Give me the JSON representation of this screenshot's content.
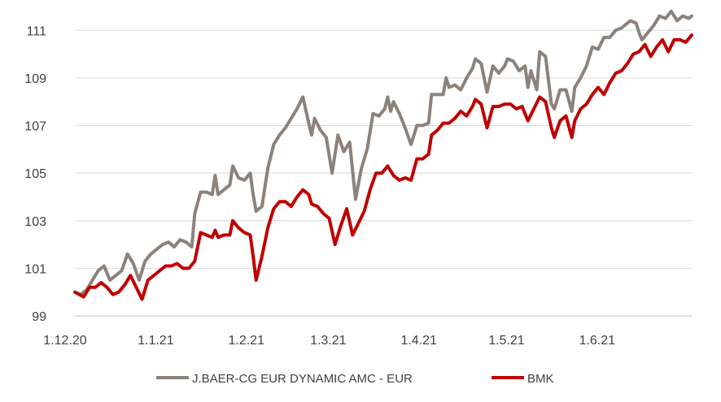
{
  "chart_data": {
    "type": "line",
    "title": "",
    "xlabel": "",
    "ylabel": "",
    "ylim": [
      99,
      112
    ],
    "y_ticks": [
      99,
      101,
      103,
      105,
      107,
      109,
      111
    ],
    "x_tick_labels": [
      "1.12.20",
      "1.1.21",
      "1.2.21",
      "1.3.21",
      "1.4.21",
      "1.5.21",
      "1.6.21"
    ],
    "x_tick_positions": [
      0,
      31,
      62,
      90,
      121,
      151,
      182
    ],
    "x_range": [
      0,
      211
    ],
    "grid": "horizontal",
    "legend_position": "bottom",
    "series": [
      {
        "name": "J.BAER-CG EUR DYNAMIC AMC - EUR",
        "color": "#8c827b",
        "points": [
          [
            0,
            100.0
          ],
          [
            2,
            99.9
          ],
          [
            4,
            100.1
          ],
          [
            6,
            100.5
          ],
          [
            8,
            100.9
          ],
          [
            10,
            101.1
          ],
          [
            12,
            100.5
          ],
          [
            14,
            100.7
          ],
          [
            16,
            100.9
          ],
          [
            18,
            101.6
          ],
          [
            20,
            101.2
          ],
          [
            22,
            100.5
          ],
          [
            24,
            101.3
          ],
          [
            26,
            101.6
          ],
          [
            28,
            101.8
          ],
          [
            30,
            102.0
          ],
          [
            32,
            102.1
          ],
          [
            34,
            101.9
          ],
          [
            36,
            102.2
          ],
          [
            38,
            102.1
          ],
          [
            40,
            101.9
          ],
          [
            41,
            103.3
          ],
          [
            43,
            104.2
          ],
          [
            45,
            104.2
          ],
          [
            47,
            104.1
          ],
          [
            48,
            104.9
          ],
          [
            49,
            104.1
          ],
          [
            51,
            104.3
          ],
          [
            53,
            104.5
          ],
          [
            54,
            105.3
          ],
          [
            56,
            104.8
          ],
          [
            58,
            104.7
          ],
          [
            60,
            105.0
          ],
          [
            61,
            104.1
          ],
          [
            62,
            103.4
          ],
          [
            64,
            103.6
          ],
          [
            66,
            105.2
          ],
          [
            68,
            106.2
          ],
          [
            70,
            106.6
          ],
          [
            72,
            106.9
          ],
          [
            74,
            107.3
          ],
          [
            76,
            107.7
          ],
          [
            78,
            108.2
          ],
          [
            80,
            107.1
          ],
          [
            81,
            106.6
          ],
          [
            82,
            107.3
          ],
          [
            84,
            106.8
          ],
          [
            86,
            106.5
          ],
          [
            88,
            105.0
          ],
          [
            90,
            106.6
          ],
          [
            92,
            105.9
          ],
          [
            94,
            106.3
          ],
          [
            96,
            103.9
          ],
          [
            98,
            105.2
          ],
          [
            100,
            106.0
          ],
          [
            102,
            107.5
          ],
          [
            104,
            107.4
          ],
          [
            106,
            107.7
          ],
          [
            107,
            108.2
          ],
          [
            108,
            107.6
          ],
          [
            109,
            108.0
          ],
          [
            111,
            107.5
          ],
          [
            113,
            106.9
          ],
          [
            115,
            106.2
          ],
          [
            117,
            107.0
          ],
          [
            119,
            107.0
          ],
          [
            121,
            107.1
          ],
          [
            122,
            108.3
          ],
          [
            124,
            108.3
          ],
          [
            126,
            108.3
          ],
          [
            127,
            109.0
          ],
          [
            128,
            108.6
          ],
          [
            130,
            108.7
          ],
          [
            132,
            108.5
          ],
          [
            134,
            109.0
          ],
          [
            136,
            109.4
          ],
          [
            137,
            109.8
          ],
          [
            139,
            109.6
          ],
          [
            141,
            108.4
          ],
          [
            143,
            109.5
          ],
          [
            145,
            109.2
          ],
          [
            147,
            109.5
          ],
          [
            148,
            109.8
          ],
          [
            150,
            109.7
          ],
          [
            152,
            109.3
          ],
          [
            154,
            109.5
          ],
          [
            155,
            108.6
          ],
          [
            156,
            109.3
          ],
          [
            158,
            108.5
          ],
          [
            159,
            110.1
          ],
          [
            161,
            109.9
          ],
          [
            163,
            107.9
          ],
          [
            164,
            107.7
          ],
          [
            166,
            108.5
          ],
          [
            168,
            108.5
          ],
          [
            170,
            107.6
          ],
          [
            171,
            108.6
          ],
          [
            173,
            109.0
          ],
          [
            175,
            109.5
          ],
          [
            177,
            110.3
          ],
          [
            179,
            110.2
          ],
          [
            181,
            110.7
          ],
          [
            183,
            110.7
          ],
          [
            185,
            111.0
          ],
          [
            187,
            111.1
          ],
          [
            188,
            111.2
          ],
          [
            190,
            111.4
          ],
          [
            192,
            111.3
          ],
          [
            193,
            110.9
          ],
          [
            194,
            110.6
          ],
          [
            196,
            110.9
          ],
          [
            198,
            111.2
          ],
          [
            200,
            111.6
          ],
          [
            202,
            111.5
          ],
          [
            204,
            111.8
          ],
          [
            206,
            111.4
          ],
          [
            208,
            111.6
          ],
          [
            210,
            111.5
          ],
          [
            211,
            111.6
          ]
        ]
      },
      {
        "name": "BMK",
        "color": "#c00000",
        "points": [
          [
            0,
            100.0
          ],
          [
            3,
            99.8
          ],
          [
            5,
            100.2
          ],
          [
            7,
            100.2
          ],
          [
            9,
            100.4
          ],
          [
            11,
            100.2
          ],
          [
            13,
            99.9
          ],
          [
            15,
            100.0
          ],
          [
            17,
            100.3
          ],
          [
            19,
            100.7
          ],
          [
            21,
            100.2
          ],
          [
            23,
            99.7
          ],
          [
            25,
            100.5
          ],
          [
            27,
            100.7
          ],
          [
            29,
            100.9
          ],
          [
            31,
            101.1
          ],
          [
            33,
            101.1
          ],
          [
            35,
            101.2
          ],
          [
            37,
            101.0
          ],
          [
            39,
            101.0
          ],
          [
            41,
            101.3
          ],
          [
            43,
            102.5
          ],
          [
            45,
            102.4
          ],
          [
            47,
            102.3
          ],
          [
            48,
            102.6
          ],
          [
            49,
            102.3
          ],
          [
            51,
            102.4
          ],
          [
            53,
            102.4
          ],
          [
            54,
            103.0
          ],
          [
            56,
            102.7
          ],
          [
            58,
            102.5
          ],
          [
            60,
            102.4
          ],
          [
            61,
            101.5
          ],
          [
            62,
            100.5
          ],
          [
            64,
            101.5
          ],
          [
            66,
            102.7
          ],
          [
            68,
            103.5
          ],
          [
            70,
            103.8
          ],
          [
            72,
            103.8
          ],
          [
            74,
            103.6
          ],
          [
            76,
            104.0
          ],
          [
            78,
            104.3
          ],
          [
            80,
            104.1
          ],
          [
            81,
            103.7
          ],
          [
            83,
            103.6
          ],
          [
            85,
            103.3
          ],
          [
            87,
            103.1
          ],
          [
            89,
            102.0
          ],
          [
            91,
            102.8
          ],
          [
            93,
            103.5
          ],
          [
            95,
            102.4
          ],
          [
            97,
            102.9
          ],
          [
            99,
            103.4
          ],
          [
            101,
            104.3
          ],
          [
            103,
            105.0
          ],
          [
            105,
            105.0
          ],
          [
            107,
            105.3
          ],
          [
            109,
            104.9
          ],
          [
            111,
            104.7
          ],
          [
            113,
            104.8
          ],
          [
            115,
            104.7
          ],
          [
            117,
            105.6
          ],
          [
            119,
            105.6
          ],
          [
            121,
            105.8
          ],
          [
            122,
            106.6
          ],
          [
            124,
            106.8
          ],
          [
            126,
            107.1
          ],
          [
            128,
            107.1
          ],
          [
            130,
            107.3
          ],
          [
            132,
            107.6
          ],
          [
            134,
            107.4
          ],
          [
            136,
            107.8
          ],
          [
            137,
            108.1
          ],
          [
            139,
            107.9
          ],
          [
            141,
            106.9
          ],
          [
            143,
            107.8
          ],
          [
            145,
            107.8
          ],
          [
            147,
            107.9
          ],
          [
            149,
            107.9
          ],
          [
            151,
            107.7
          ],
          [
            153,
            107.8
          ],
          [
            155,
            107.2
          ],
          [
            157,
            107.7
          ],
          [
            159,
            108.2
          ],
          [
            161,
            108.0
          ],
          [
            163,
            106.9
          ],
          [
            164,
            106.5
          ],
          [
            166,
            107.2
          ],
          [
            168,
            107.4
          ],
          [
            170,
            106.5
          ],
          [
            171,
            107.2
          ],
          [
            173,
            107.7
          ],
          [
            175,
            107.9
          ],
          [
            177,
            108.3
          ],
          [
            179,
            108.6
          ],
          [
            181,
            108.3
          ],
          [
            183,
            108.8
          ],
          [
            185,
            109.2
          ],
          [
            187,
            109.3
          ],
          [
            189,
            109.6
          ],
          [
            191,
            110.0
          ],
          [
            193,
            110.1
          ],
          [
            195,
            110.4
          ],
          [
            197,
            109.9
          ],
          [
            199,
            110.3
          ],
          [
            201,
            110.6
          ],
          [
            203,
            110.1
          ],
          [
            205,
            110.6
          ],
          [
            207,
            110.6
          ],
          [
            209,
            110.5
          ],
          [
            211,
            110.8
          ]
        ]
      }
    ]
  }
}
